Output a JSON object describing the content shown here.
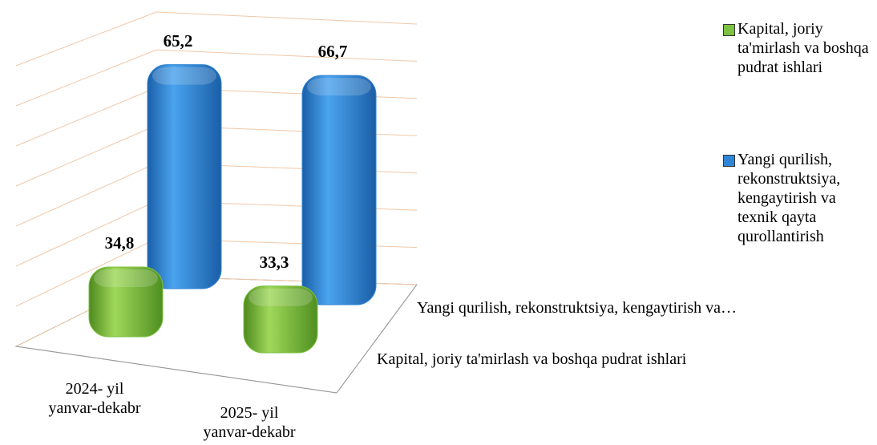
{
  "chart_data": {
    "type": "bar3d",
    "categories": [
      "2024- yil\nyanvar-dekabr",
      "2025- yil\nyanvar-dekabr"
    ],
    "depth_labels": [
      "Kapital, joriy ta'mirlash va boshqa pudrat ishlari",
      "Yangi qurilish, rekonstruktsiya, kengaytirish va…"
    ],
    "series": [
      {
        "name": "Kapital, joriy ta'mirlash va boshqa pudrat ishlari",
        "color": "#7cc242",
        "values": [
          34.8,
          33.3
        ],
        "value_labels": [
          "34,8",
          "33,3"
        ]
      },
      {
        "name": "Yangi qurilish, rekonstruktsiya, kengaytirish va texnik qayta qurollantirish",
        "color": "#2f86d6",
        "values": [
          65.2,
          66.7
        ],
        "value_labels": [
          "65,2",
          "66,7"
        ]
      }
    ],
    "ylim": [
      0,
      70
    ],
    "yticks": [
      0,
      10,
      20,
      30,
      40,
      50,
      60,
      70
    ],
    "ytick_labels": false,
    "grid": true,
    "legend": "right"
  }
}
